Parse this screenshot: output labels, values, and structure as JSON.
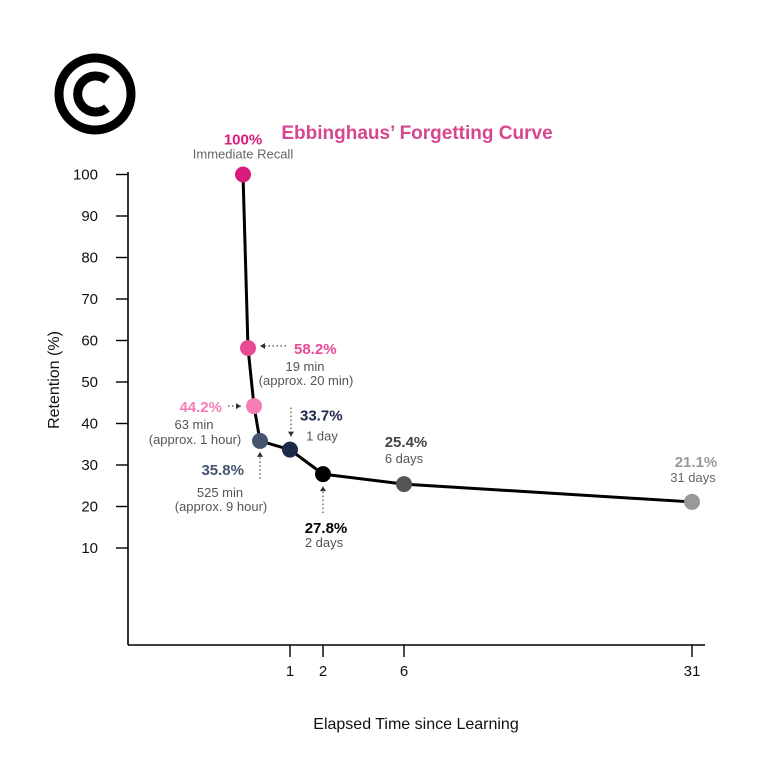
{
  "logo": {
    "symbol": "copyright-icon",
    "glyph": "C",
    "color": "#000000"
  },
  "chart_data": {
    "type": "line",
    "title": "Ebbinghaus’ Forgetting Curve",
    "title_color": "#d6478f",
    "ylabel": "Retention (%)",
    "xlabel": "Elapsed Time since Learning",
    "y_ticks": [
      10,
      20,
      30,
      40,
      50,
      60,
      70,
      80,
      90,
      100
    ],
    "x_ticks": [
      {
        "day": 1,
        "label": "1"
      },
      {
        "day": 2,
        "label": "2"
      },
      {
        "day": 6,
        "label": "6"
      },
      {
        "day": 31,
        "label": "31"
      }
    ],
    "ylim": [
      0,
      100
    ],
    "x_scale": "non-linear (early points stretched)",
    "grid": false,
    "line_color": "#000000",
    "points": [
      {
        "time_days": 0,
        "retention": 100,
        "percent_label": "100%",
        "sub_labels": [
          "Immediate Recall"
        ],
        "color": "#d81b7c",
        "pct_color": "#d81b7c",
        "sub_color": "#666666",
        "arrow": false
      },
      {
        "time_days": 0.0132,
        "retention": 58.2,
        "percent_label": "58.2%",
        "sub_labels": [
          "19 min",
          "(approx. 20 min)"
        ],
        "color": "#e84a94",
        "pct_color": "#e84a94",
        "sub_color": "#555555",
        "arrow": true
      },
      {
        "time_days": 0.0438,
        "retention": 44.2,
        "percent_label": "44.2%",
        "sub_labels": [
          "63 min",
          "(approx. 1 hour)"
        ],
        "color": "#f47db5",
        "pct_color": "#f47db5",
        "sub_color": "#555555",
        "arrow": true
      },
      {
        "time_days": 0.3646,
        "retention": 35.8,
        "percent_label": "35.8%",
        "sub_labels": [
          "525 min",
          "(approx. 9 hour)"
        ],
        "color": "#44546e",
        "pct_color": "#44546e",
        "sub_color": "#555555",
        "arrow": true
      },
      {
        "time_days": 1,
        "retention": 33.7,
        "percent_label": "33.7%",
        "sub_labels": [
          "1 day"
        ],
        "color": "#1c2a4a",
        "pct_color": "#1c2a4a",
        "sub_color": "#555555",
        "arrow": true
      },
      {
        "time_days": 2,
        "retention": 27.8,
        "percent_label": "27.8%",
        "sub_labels": [
          "2 days"
        ],
        "color": "#000000",
        "pct_color": "#000000",
        "sub_color": "#555555",
        "arrow": true
      },
      {
        "time_days": 6,
        "retention": 25.4,
        "percent_label": "25.4%",
        "sub_labels": [
          "6 days"
        ],
        "color": "#555555",
        "pct_color": "#444444",
        "sub_color": "#555555",
        "arrow": false
      },
      {
        "time_days": 31,
        "retention": 21.1,
        "percent_label": "21.1%",
        "sub_labels": [
          "31 days"
        ],
        "color": "#999999",
        "pct_color": "#999999",
        "sub_color": "#666666",
        "arrow": false
      }
    ]
  }
}
